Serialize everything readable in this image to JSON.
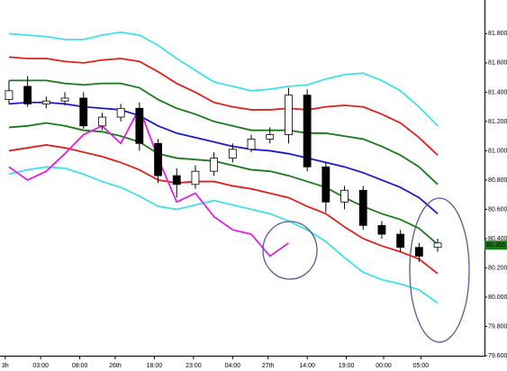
{
  "chart_data": {
    "type": "candlestick",
    "x": [
      0,
      1,
      2,
      3,
      4,
      5,
      6,
      7,
      8,
      9,
      10,
      11,
      12,
      13,
      14,
      15,
      16,
      17,
      18,
      19,
      20,
      21,
      22,
      23
    ],
    "open": [
      81.35,
      81.44,
      81.32,
      81.34,
      81.36,
      81.17,
      81.23,
      81.29,
      81.05,
      80.83,
      80.77,
      80.86,
      80.95,
      81.01,
      81.08,
      81.11,
      81.38,
      80.89,
      80.65,
      80.73,
      80.49,
      80.43,
      80.34,
      80.34
    ],
    "high": [
      81.48,
      81.51,
      81.37,
      81.4,
      81.4,
      81.26,
      81.32,
      81.33,
      81.08,
      80.88,
      80.9,
      80.99,
      81.05,
      81.11,
      81.16,
      81.43,
      81.42,
      80.92,
      80.76,
      80.76,
      80.52,
      80.46,
      80.37,
      80.4
    ],
    "low": [
      81.32,
      81.3,
      81.29,
      81.31,
      81.15,
      81.14,
      81.2,
      81.0,
      80.78,
      80.68,
      80.74,
      80.83,
      80.92,
      80.99,
      81.05,
      81.05,
      80.86,
      80.58,
      80.6,
      80.46,
      80.4,
      80.31,
      80.24,
      80.31
    ],
    "close": [
      81.41,
      81.32,
      81.34,
      81.36,
      81.17,
      81.23,
      81.29,
      81.05,
      80.83,
      80.77,
      80.86,
      80.95,
      81.01,
      81.08,
      81.11,
      81.38,
      80.89,
      80.65,
      80.73,
      80.49,
      80.43,
      80.34,
      80.28,
      80.37
    ],
    "up_color": "#ffffff",
    "down_color": "#000000",
    "series": [
      {
        "color": "#40e0e8",
        "values": [
          81.8,
          81.79,
          81.78,
          81.76,
          81.76,
          81.79,
          81.81,
          81.79,
          81.72,
          81.63,
          81.55,
          81.47,
          81.44,
          81.41,
          81.42,
          81.44,
          81.45,
          81.49,
          81.52,
          81.53,
          81.48,
          81.41,
          81.3,
          81.17
        ]
      },
      {
        "color": "#e0201c",
        "values": [
          81.64,
          81.63,
          81.63,
          81.61,
          81.6,
          81.62,
          81.63,
          81.61,
          81.54,
          81.46,
          81.4,
          81.33,
          81.3,
          81.28,
          81.28,
          81.29,
          81.28,
          81.3,
          81.31,
          81.3,
          81.25,
          81.19,
          81.09,
          80.97
        ]
      },
      {
        "color": "#1a7a1a",
        "values": [
          81.48,
          81.48,
          81.48,
          81.46,
          81.45,
          81.46,
          81.46,
          81.43,
          81.35,
          81.29,
          81.25,
          81.2,
          81.17,
          81.14,
          81.14,
          81.14,
          81.12,
          81.12,
          81.1,
          81.08,
          81.03,
          80.97,
          80.89,
          80.77
        ]
      },
      {
        "color": "#1a1acc",
        "values": [
          81.32,
          81.33,
          81.33,
          81.32,
          81.3,
          81.29,
          81.28,
          81.24,
          81.17,
          81.12,
          81.09,
          81.06,
          81.03,
          81.01,
          81.0,
          80.98,
          80.95,
          80.92,
          80.89,
          80.85,
          80.8,
          80.75,
          80.68,
          80.57
        ]
      },
      {
        "color": "#1a7a1a",
        "values": [
          81.16,
          81.17,
          81.19,
          81.17,
          81.14,
          81.13,
          81.1,
          81.06,
          80.98,
          80.95,
          80.94,
          80.93,
          80.9,
          80.87,
          80.86,
          80.83,
          80.79,
          80.75,
          80.68,
          80.62,
          80.57,
          80.53,
          80.47,
          80.36
        ]
      },
      {
        "color": "#e0201c",
        "values": [
          81.0,
          81.02,
          81.04,
          81.02,
          80.99,
          80.96,
          80.92,
          80.87,
          80.8,
          80.78,
          80.79,
          80.79,
          80.76,
          80.74,
          80.71,
          80.68,
          80.62,
          80.57,
          80.48,
          80.4,
          80.35,
          80.31,
          80.26,
          80.16
        ]
      },
      {
        "color": "#40e0e8",
        "values": [
          80.84,
          80.87,
          80.89,
          80.88,
          80.84,
          80.79,
          80.75,
          80.69,
          80.62,
          80.6,
          80.63,
          80.66,
          80.63,
          80.6,
          80.57,
          80.52,
          80.46,
          80.38,
          80.27,
          80.17,
          80.12,
          80.09,
          80.05,
          79.96
        ]
      },
      {
        "color": "#e020e0",
        "values": [
          80.89,
          80.8,
          80.86,
          80.98,
          81.11,
          81.17,
          81.05,
          81.29,
          80.95,
          80.65,
          80.71,
          80.55,
          80.46,
          80.43,
          80.28,
          80.37,
          null,
          null,
          null,
          null,
          null,
          null,
          null,
          null
        ]
      }
    ],
    "last_price": {
      "value": 80.355,
      "label": "80.355"
    },
    "last_price_color": "#1a7a1a",
    "xlim": [
      -0.48,
      25.51
    ],
    "xticks": [
      {
        "value": -0.2,
        "label": "3h"
      },
      {
        "value": 1.7,
        "label": "03:00"
      },
      {
        "value": 3.8,
        "label": "08:00"
      },
      {
        "value": 5.7,
        "label": "26th"
      },
      {
        "value": 7.8,
        "label": "18:00"
      },
      {
        "value": 9.9,
        "label": "23:00"
      },
      {
        "value": 12,
        "label": "04:00"
      },
      {
        "value": 13.9,
        "label": "27th"
      },
      {
        "value": 16,
        "label": "14:00"
      },
      {
        "value": 18.1,
        "label": "19:00"
      },
      {
        "value": 20.1,
        "label": "00:00"
      },
      {
        "value": 22.1,
        "label": "05:00"
      }
    ],
    "ylim": [
      79.6,
      82.03
    ],
    "yticks": [
      {
        "value": 79.6,
        "label": "79.600"
      },
      {
        "value": 79.8,
        "label": "79.800"
      },
      {
        "value": 80,
        "label": "80.000"
      },
      {
        "value": 80.2,
        "label": "80.200"
      },
      {
        "value": 80.4,
        "label": "80.400"
      },
      {
        "value": 80.6,
        "label": "80.600"
      },
      {
        "value": 80.8,
        "label": "80.800"
      },
      {
        "value": 81,
        "label": "81.000"
      },
      {
        "value": 81.2,
        "label": "81.200"
      },
      {
        "value": 81.4,
        "label": "81.400"
      },
      {
        "value": 81.6,
        "label": "81.600"
      },
      {
        "value": 81.8,
        "label": "81.800"
      }
    ]
  }
}
